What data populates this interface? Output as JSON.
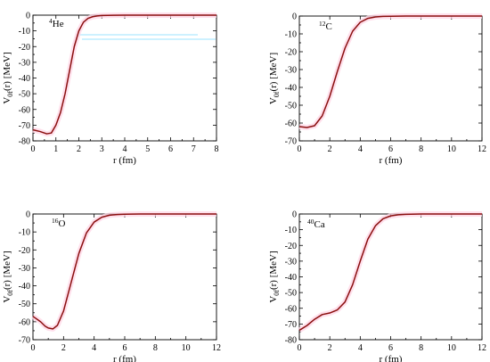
{
  "chart_data": [
    {
      "type": "line",
      "nucleus_mass": "4",
      "nucleus_symbol": "He",
      "xlabel": "r (fm)",
      "ylabel_main": "V",
      "ylabel_sub": "0f",
      "ylabel_rest": "(r)  [MeV]",
      "xlim": [
        0,
        8
      ],
      "ylim": [
        -80,
        0
      ],
      "x_ticks": [
        "0",
        "1",
        "2",
        "3",
        "4",
        "5",
        "6",
        "7",
        "8"
      ],
      "y_ticks": [
        "0",
        "-10",
        "-20",
        "-30",
        "-40",
        "-50",
        "-60",
        "-70",
        "-80"
      ],
      "grid": false,
      "x": [
        0,
        0.3,
        0.6,
        0.8,
        1.0,
        1.2,
        1.4,
        1.6,
        1.8,
        2.0,
        2.2,
        2.4,
        2.6,
        2.8,
        3.0,
        3.5,
        4,
        5,
        6,
        7,
        8
      ],
      "y": [
        -73,
        -74,
        -75.5,
        -75,
        -70,
        -62,
        -50,
        -35,
        -20,
        -10,
        -4.5,
        -2,
        -1,
        -0.5,
        -0.2,
        -0.05,
        0,
        0,
        0,
        0,
        0
      ]
    },
    {
      "type": "line",
      "nucleus_mass": "12",
      "nucleus_symbol": "C",
      "xlabel": "r (fm)",
      "ylabel_main": "V",
      "ylabel_sub": "0f",
      "ylabel_rest": "(r)  [MeV]",
      "xlim": [
        0,
        12
      ],
      "ylim": [
        -70,
        0
      ],
      "x_ticks": [
        "0",
        "2",
        "4",
        "6",
        "8",
        "10",
        "12"
      ],
      "y_ticks": [
        "0",
        "-10",
        "-20",
        "-30",
        "-40",
        "-50",
        "-60",
        "-70"
      ],
      "grid": false,
      "x": [
        0,
        0.5,
        1.0,
        1.5,
        2.0,
        2.5,
        3.0,
        3.5,
        4.0,
        4.5,
        5.0,
        5.5,
        6.0,
        7,
        8,
        10,
        12
      ],
      "y": [
        -62,
        -62.5,
        -61.5,
        -56,
        -45,
        -31,
        -18,
        -8.5,
        -3.5,
        -1.3,
        -0.5,
        -0.2,
        -0.1,
        0,
        0,
        0,
        0
      ]
    },
    {
      "type": "line",
      "nucleus_mass": "16",
      "nucleus_symbol": "O",
      "xlabel": "r (fm)",
      "ylabel_main": "V",
      "ylabel_sub": "0f",
      "ylabel_rest": "(r)  [MeV]",
      "xlim": [
        0,
        12
      ],
      "ylim": [
        -70,
        0
      ],
      "x_ticks": [
        "0",
        "2",
        "4",
        "6",
        "8",
        "10",
        "12"
      ],
      "y_ticks": [
        "0",
        "-10",
        "-20",
        "-30",
        "-40",
        "-50",
        "-60",
        "-70"
      ],
      "grid": false,
      "x": [
        0,
        0.5,
        0.8,
        1.0,
        1.3,
        1.6,
        2.0,
        2.5,
        3.0,
        3.5,
        4.0,
        4.5,
        5.0,
        5.5,
        6.0,
        7,
        8,
        10,
        12
      ],
      "y": [
        -57,
        -60,
        -62.5,
        -63.5,
        -64,
        -62,
        -54,
        -38,
        -22,
        -10.5,
        -4.5,
        -1.8,
        -0.7,
        -0.3,
        -0.1,
        0,
        0,
        0,
        0
      ]
    },
    {
      "type": "line",
      "nucleus_mass": "40",
      "nucleus_symbol": "Ca",
      "xlabel": "r (fm)",
      "ylabel_main": "V",
      "ylabel_sub": "0f",
      "ylabel_rest": "(r)  [MeV]",
      "xlim": [
        0,
        12
      ],
      "ylim": [
        -80,
        0
      ],
      "x_ticks": [
        "0",
        "2",
        "4",
        "6",
        "8",
        "10",
        "12"
      ],
      "y_ticks": [
        "0",
        "-10",
        "-20",
        "-30",
        "-40",
        "-50",
        "-60",
        "-70",
        "-80"
      ],
      "grid": false,
      "x": [
        0,
        0.5,
        1.0,
        1.5,
        2.0,
        2.5,
        3.0,
        3.5,
        4.0,
        4.5,
        5.0,
        5.5,
        6.0,
        6.5,
        7.0,
        8,
        10,
        12
      ],
      "y": [
        -74,
        -71,
        -67,
        -64,
        -63,
        -61,
        -56,
        -45,
        -30,
        -16,
        -7.5,
        -3,
        -1.2,
        -0.5,
        -0.2,
        0,
        0,
        0
      ]
    }
  ]
}
